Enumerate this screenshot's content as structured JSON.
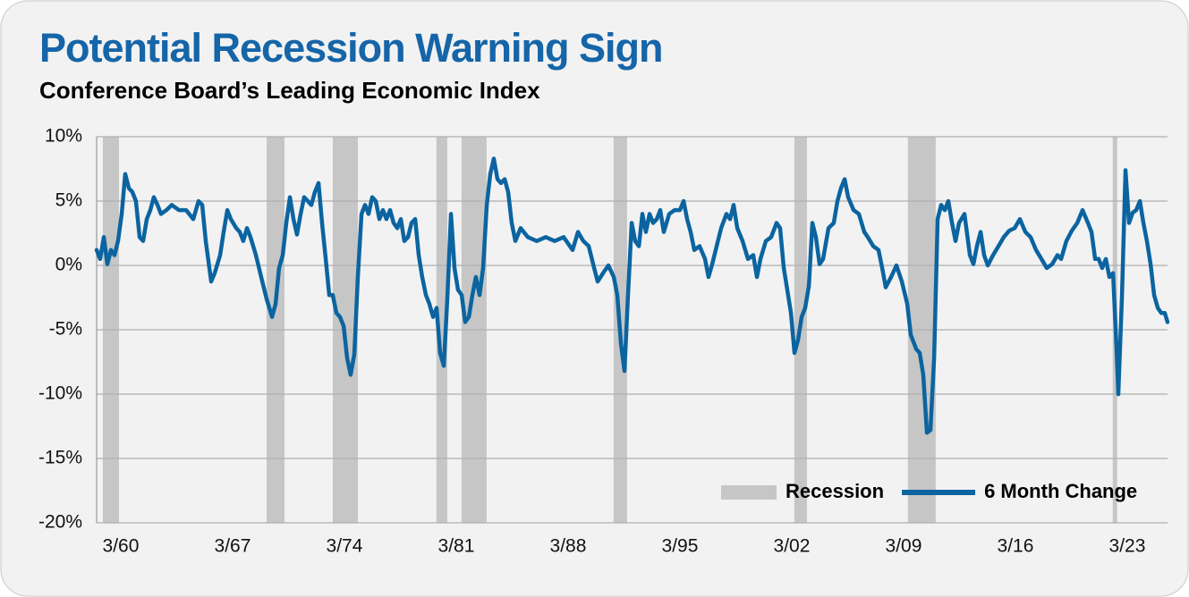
{
  "chart_data": {
    "type": "line",
    "title": "Potential Recession Warning Sign",
    "subtitle": "Conference Board’s Leading Economic Index",
    "xlim": [
      1958.66,
      2025.69
    ],
    "ylim": [
      -20,
      10
    ],
    "yticks": [
      {
        "value": 10,
        "label": "10%"
      },
      {
        "value": 5,
        "label": "5%"
      },
      {
        "value": 0,
        "label": "0%"
      },
      {
        "value": -5,
        "label": "-5%"
      },
      {
        "value": -10,
        "label": "-10%"
      },
      {
        "value": -15,
        "label": "-15%"
      },
      {
        "value": -20,
        "label": "-20%"
      }
    ],
    "xticks": [
      {
        "value": 1960.17,
        "label": "3/60"
      },
      {
        "value": 1967.17,
        "label": "3/67"
      },
      {
        "value": 1974.17,
        "label": "3/74"
      },
      {
        "value": 1981.17,
        "label": "3/81"
      },
      {
        "value": 1988.17,
        "label": "3/88"
      },
      {
        "value": 1995.17,
        "label": "3/95"
      },
      {
        "value": 2002.17,
        "label": "3/02"
      },
      {
        "value": 2009.17,
        "label": "3/09"
      },
      {
        "value": 2016.17,
        "label": "3/16"
      },
      {
        "value": 2023.17,
        "label": "3/23"
      }
    ],
    "grid": true,
    "legend": "lower right",
    "recessions": {
      "name": "Recession",
      "color": "#c6c6c6",
      "periods": [
        [
          1959.05,
          1960.06
        ],
        [
          1969.3,
          1970.42
        ],
        [
          1973.44,
          1975.01
        ],
        [
          1979.93,
          1980.61
        ],
        [
          1981.5,
          1983.07
        ],
        [
          1991.02,
          1991.86
        ],
        [
          2002.33,
          2003.12
        ],
        [
          2009.44,
          2011.18
        ],
        [
          2022.26,
          2022.54
        ]
      ]
    },
    "series": [
      {
        "name": "6 Month Change",
        "color": "#0b64a0",
        "x": [
          1958.66,
          1958.88,
          1959.11,
          1959.33,
          1959.56,
          1959.78,
          1960.0,
          1960.23,
          1960.45,
          1960.68,
          1960.9,
          1961.12,
          1961.35,
          1961.57,
          1961.8,
          1962.02,
          1962.24,
          1962.47,
          1962.69,
          1963.03,
          1963.36,
          1963.81,
          1964.26,
          1964.71,
          1965.04,
          1965.27,
          1965.49,
          1965.83,
          1966.05,
          1966.39,
          1966.61,
          1966.84,
          1967.06,
          1967.4,
          1967.62,
          1967.84,
          1968.07,
          1968.29,
          1968.63,
          1968.96,
          1969.3,
          1969.64,
          1969.86,
          1970.08,
          1970.31,
          1970.53,
          1970.76,
          1970.98,
          1971.2,
          1971.43,
          1971.65,
          1971.88,
          1972.1,
          1972.32,
          1972.55,
          1972.77,
          1973.0,
          1973.22,
          1973.44,
          1973.67,
          1973.89,
          1974.12,
          1974.34,
          1974.56,
          1974.79,
          1975.01,
          1975.24,
          1975.46,
          1975.68,
          1975.91,
          1976.13,
          1976.36,
          1976.58,
          1976.8,
          1977.03,
          1977.25,
          1977.48,
          1977.7,
          1977.92,
          1978.15,
          1978.37,
          1978.6,
          1978.82,
          1979.04,
          1979.27,
          1979.49,
          1979.72,
          1979.94,
          1980.16,
          1980.39,
          1980.61,
          1980.84,
          1981.06,
          1981.28,
          1981.51,
          1981.73,
          1981.96,
          1982.18,
          1982.4,
          1982.63,
          1982.85,
          1983.08,
          1983.3,
          1983.52,
          1983.75,
          1983.97,
          1984.2,
          1984.42,
          1984.64,
          1984.87,
          1985.2,
          1985.65,
          1986.21,
          1986.77,
          1987.33,
          1987.89,
          1988.45,
          1988.79,
          1989.12,
          1989.46,
          1989.8,
          1990.02,
          1990.36,
          1990.69,
          1991.03,
          1991.25,
          1991.48,
          1991.7,
          1991.92,
          1992.15,
          1992.37,
          1992.6,
          1992.82,
          1993.04,
          1993.27,
          1993.49,
          1993.72,
          1993.94,
          1994.16,
          1994.5,
          1994.84,
          1995.17,
          1995.4,
          1995.62,
          1995.84,
          1996.07,
          1996.4,
          1996.74,
          1996.96,
          1997.19,
          1997.41,
          1997.75,
          1998.08,
          1998.31,
          1998.53,
          1998.76,
          1999.09,
          1999.43,
          1999.76,
          1999.99,
          2000.21,
          2000.55,
          2000.88,
          2001.22,
          2001.44,
          2001.67,
          2001.89,
          2002.12,
          2002.34,
          2002.56,
          2002.79,
          2003.01,
          2003.24,
          2003.46,
          2003.68,
          2003.91,
          2004.13,
          2004.47,
          2004.8,
          2005.03,
          2005.25,
          2005.48,
          2005.7,
          2006.04,
          2006.37,
          2006.71,
          2006.93,
          2007.27,
          2007.6,
          2007.83,
          2008.05,
          2008.39,
          2008.72,
          2009.06,
          2009.4,
          2009.62,
          2009.96,
          2010.18,
          2010.4,
          2010.63,
          2010.85,
          2011.08,
          2011.3,
          2011.52,
          2011.75,
          2011.97,
          2012.2,
          2012.42,
          2012.64,
          2012.98,
          2013.32,
          2013.54,
          2013.76,
          2013.99,
          2014.21,
          2014.44,
          2014.77,
          2015.11,
          2015.44,
          2015.78,
          2016.12,
          2016.45,
          2016.79,
          2017.12,
          2017.46,
          2017.8,
          2018.13,
          2018.47,
          2018.8,
          2019.03,
          2019.36,
          2019.7,
          2020.04,
          2020.37,
          2020.71,
          2020.93,
          2021.16,
          2021.38,
          2021.6,
          2021.83,
          2022.05,
          2022.28,
          2022.5,
          2022.61,
          2022.84,
          2023.06,
          2023.28,
          2023.51,
          2023.73,
          2023.96,
          2024.18,
          2024.4,
          2024.63,
          2024.85,
          2025.08,
          2025.3,
          2025.52,
          2025.69
        ],
        "values": [
          1.2,
          0.5,
          2.2,
          0.1,
          1.2,
          0.8,
          1.9,
          4.0,
          7.1,
          6.0,
          5.7,
          5.0,
          2.2,
          1.9,
          3.6,
          4.3,
          5.3,
          4.7,
          4.0,
          4.3,
          4.7,
          4.3,
          4.3,
          3.6,
          5.0,
          4.7,
          1.9,
          -1.25,
          -0.6,
          0.8,
          2.6,
          4.3,
          3.6,
          2.9,
          2.6,
          1.9,
          2.9,
          2.2,
          0.8,
          -0.9,
          -2.6,
          -4.0,
          -3.0,
          -0.2,
          0.8,
          3.3,
          5.3,
          3.6,
          2.4,
          4.0,
          5.3,
          5.0,
          4.7,
          5.7,
          6.4,
          3.3,
          0.5,
          -2.3,
          -2.3,
          -3.7,
          -4.0,
          -4.7,
          -7.2,
          -8.5,
          -6.9,
          -0.9,
          4.0,
          4.7,
          4.0,
          5.3,
          5.0,
          3.6,
          4.3,
          3.6,
          4.3,
          3.3,
          2.9,
          3.6,
          1.9,
          2.2,
          3.3,
          3.6,
          0.8,
          -0.9,
          -2.3,
          -3.0,
          -4.0,
          -3.3,
          -6.8,
          -7.8,
          -2.6,
          4.0,
          -0.2,
          -1.9,
          -2.3,
          -4.4,
          -4.0,
          -2.3,
          -0.9,
          -2.3,
          -0.2,
          4.7,
          7.1,
          8.3,
          6.7,
          6.4,
          6.7,
          5.7,
          3.3,
          1.9,
          2.9,
          2.2,
          1.9,
          2.2,
          1.9,
          2.2,
          1.2,
          2.6,
          1.9,
          1.5,
          -0.2,
          -1.25,
          -0.6,
          0,
          -0.9,
          -2.3,
          -6.1,
          -8.2,
          -2.3,
          3.3,
          1.9,
          1.5,
          4.0,
          2.6,
          4.0,
          3.3,
          3.6,
          4.3,
          2.6,
          4.0,
          4.3,
          4.3,
          5.0,
          3.6,
          2.6,
          1.2,
          1.5,
          0.5,
          -0.9,
          0.1,
          1.2,
          2.9,
          4.0,
          3.6,
          4.7,
          2.9,
          1.9,
          0.5,
          0.8,
          -0.9,
          0.5,
          1.9,
          2.2,
          3.3,
          2.9,
          -0.2,
          -1.9,
          -3.7,
          -6.8,
          -5.8,
          -4.0,
          -3.3,
          -1.6,
          3.3,
          2.2,
          0.1,
          0.5,
          2.9,
          3.3,
          5.0,
          6.0,
          6.7,
          5.3,
          4.3,
          4.0,
          2.6,
          2.2,
          1.5,
          1.2,
          -0.2,
          -1.7,
          -0.9,
          0,
          -1.25,
          -3.0,
          -5.4,
          -6.5,
          -6.8,
          -8.5,
          -13.0,
          -12.8,
          -7.2,
          3.6,
          4.7,
          4.3,
          5.0,
          3.3,
          1.9,
          3.3,
          4.0,
          0.8,
          0.1,
          1.5,
          2.6,
          0.8,
          0,
          0.8,
          1.5,
          2.2,
          2.7,
          2.9,
          3.6,
          2.6,
          2.2,
          1.2,
          0.5,
          -0.2,
          0.1,
          0.8,
          0.5,
          1.9,
          2.7,
          3.3,
          4.3,
          3.3,
          2.6,
          0.5,
          0.5,
          -0.2,
          0.5,
          -0.9,
          -0.6,
          -6.5,
          -10.0,
          -2.3,
          7.4,
          3.3,
          4.1,
          4.3,
          5.0,
          3.3,
          1.9,
          0.1,
          -2.3,
          -3.3,
          -3.7,
          -3.7,
          -4.4
        ]
      }
    ]
  }
}
